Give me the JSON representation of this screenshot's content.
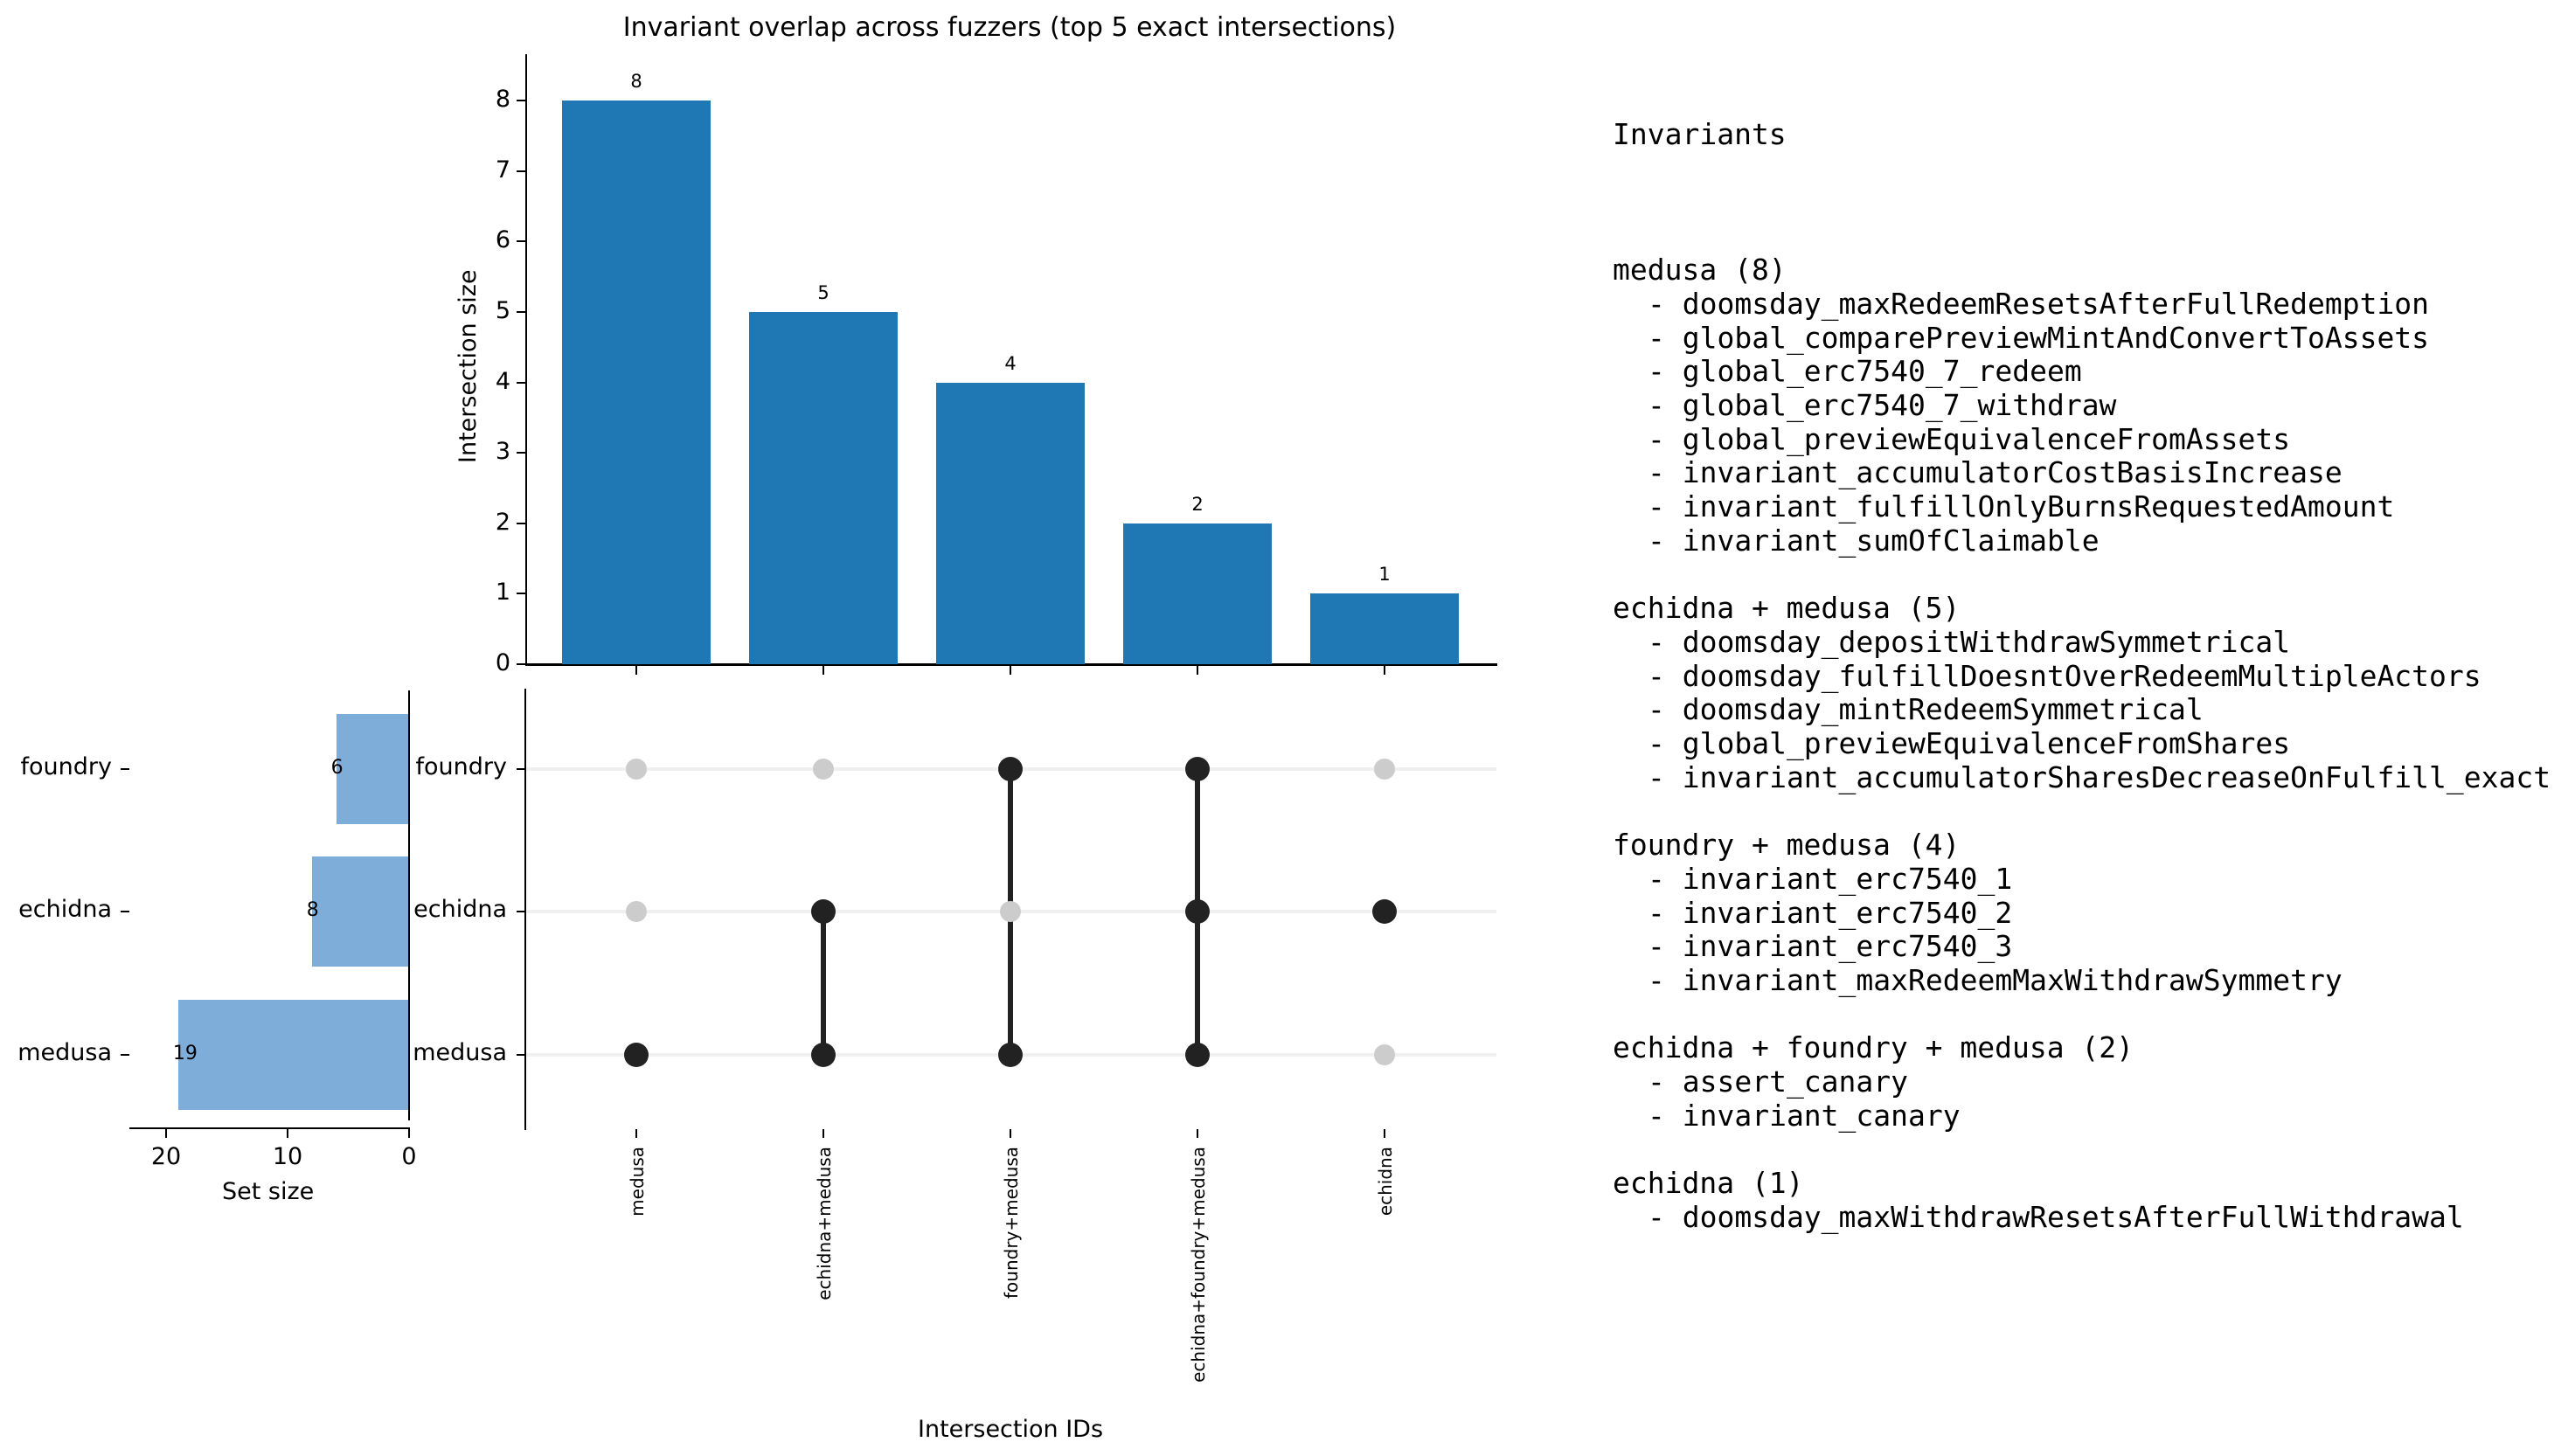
{
  "chart_data": {
    "type": "bar",
    "title": "Invariant overlap across fuzzers (top 5 exact intersections)",
    "intersections": {
      "categories": [
        "medusa",
        "echidna+medusa",
        "foundry+medusa",
        "echidna+foundry+medusa",
        "echidna"
      ],
      "values": [
        8,
        5,
        4,
        2,
        1
      ],
      "ylabel": "Intersection size",
      "xlabel": "Intersection IDs",
      "ylim": [
        0,
        8.6
      ],
      "yticks": [
        "0",
        "1",
        "2",
        "3",
        "4",
        "5",
        "6",
        "7",
        "8"
      ],
      "bar_color": "#1f77b4"
    },
    "set_sizes": {
      "sets": [
        "foundry",
        "echidna",
        "medusa"
      ],
      "values": [
        6,
        8,
        19
      ],
      "xlabel": "Set size",
      "xticks": [
        "20",
        "10",
        "0"
      ],
      "bar_color": "#7eadda"
    },
    "matrix": {
      "rows": [
        "foundry",
        "echidna",
        "medusa"
      ],
      "membership": [
        [
          false,
          false,
          true,
          true,
          false
        ],
        [
          false,
          true,
          false,
          true,
          true
        ],
        [
          true,
          true,
          true,
          true,
          false
        ]
      ],
      "active_color": "#222222",
      "inactive_color": "#cccccc"
    },
    "grid": false,
    "legend": null
  },
  "text_panel": {
    "heading": "Invariants",
    "groups": [
      {
        "header": "medusa (8)",
        "items": [
          "- doomsday_maxRedeemResetsAfterFullRedemption",
          "- global_comparePreviewMintAndConvertToAssets",
          "- global_erc7540_7_redeem",
          "- global_erc7540_7_withdraw",
          "- global_previewEquivalenceFromAssets",
          "- invariant_accumulatorCostBasisIncrease",
          "- invariant_fulfillOnlyBurnsRequestedAmount",
          "- invariant_sumOfClaimable"
        ]
      },
      {
        "header": "echidna + medusa (5)",
        "items": [
          "- doomsday_depositWithdrawSymmetrical",
          "- doomsday_fulfillDoesntOverRedeemMultipleActors",
          "- doomsday_mintRedeemSymmetrical",
          "- global_previewEquivalenceFromShares",
          "- invariant_accumulatorSharesDecreaseOnFulfill_exact"
        ]
      },
      {
        "header": "foundry + medusa (4)",
        "items": [
          "- invariant_erc7540_1",
          "- invariant_erc7540_2",
          "- invariant_erc7540_3",
          "- invariant_maxRedeemMaxWithdrawSymmetry"
        ]
      },
      {
        "header": "echidna + foundry + medusa (2)",
        "items": [
          "- assert_canary",
          "- invariant_canary"
        ]
      },
      {
        "header": "echidna (1)",
        "items": [
          "- doomsday_maxWithdrawResetsAfterFullWithdrawal"
        ]
      }
    ]
  }
}
